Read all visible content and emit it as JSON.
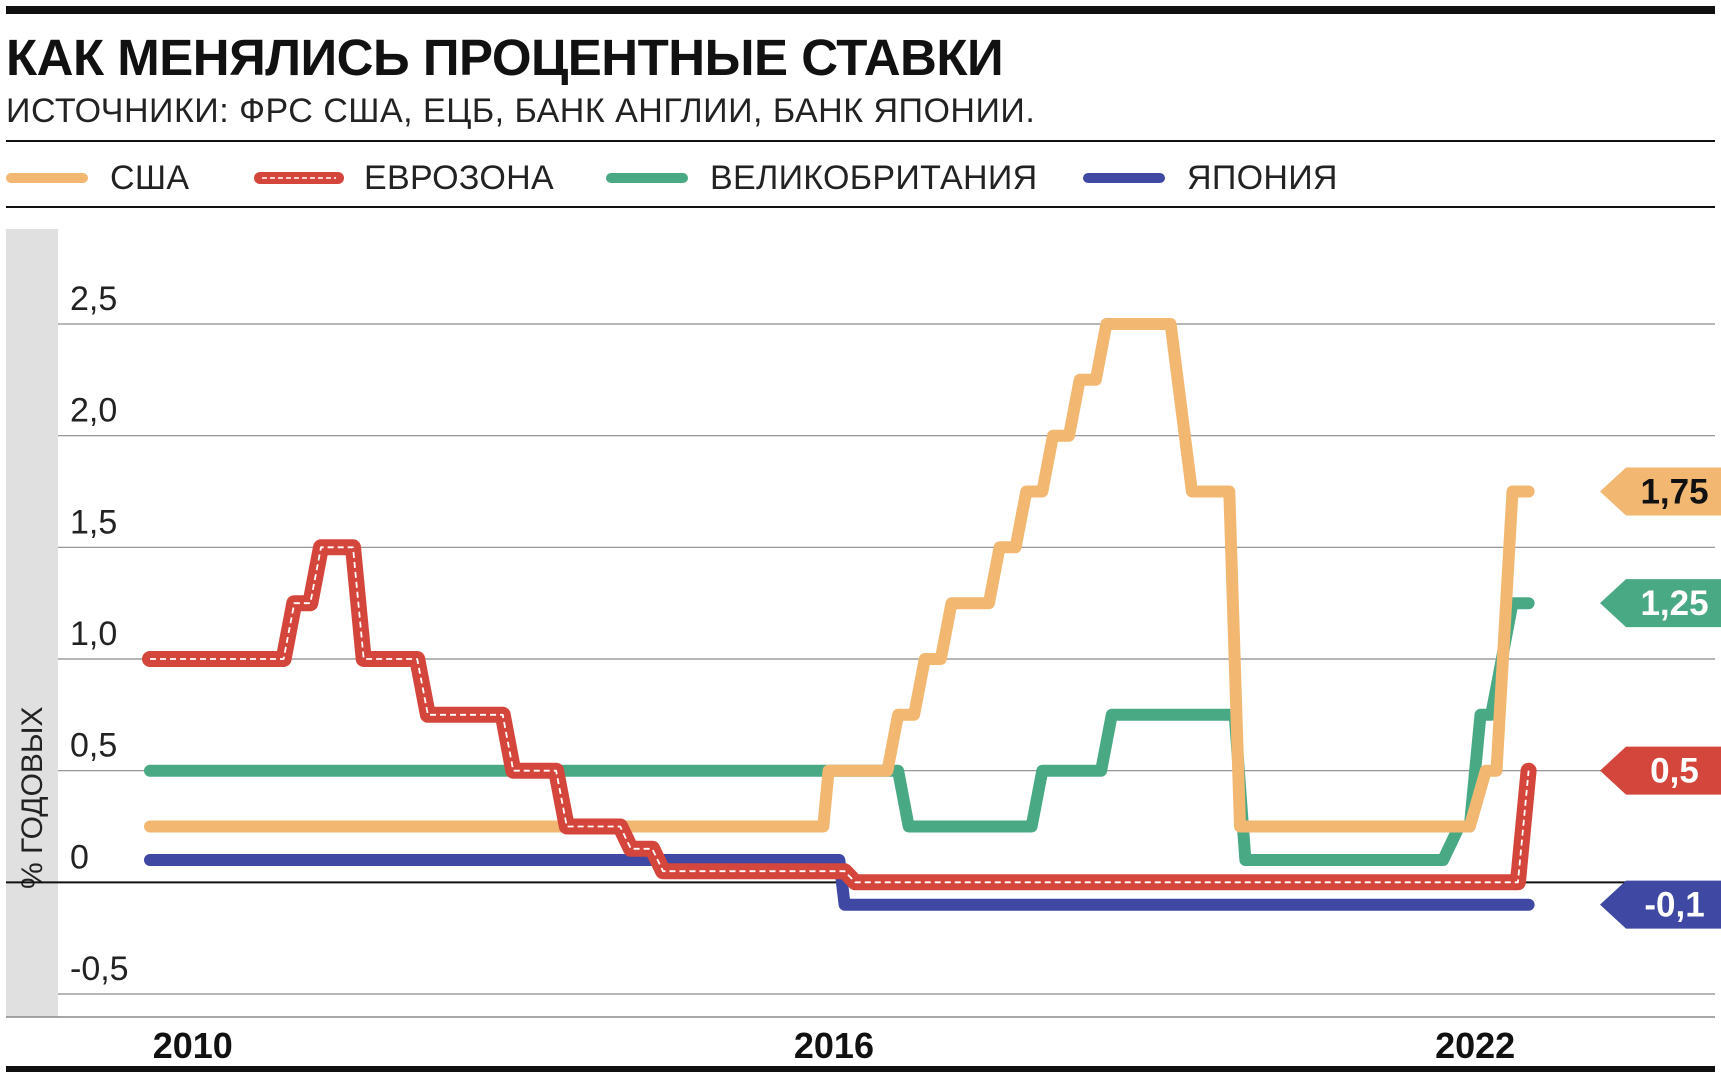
{
  "header": {
    "title": "КАК МЕНЯЛИСЬ ПРОЦЕНТНЫЕ СТАВКИ",
    "subtitle": "ИСТОЧНИКИ: ФРС США, ЕЦБ, БАНК АНГЛИИ, БАНК ЯПОНИИ."
  },
  "colors": {
    "usa": "#F2B872",
    "eurozone": "#D4463B",
    "uk": "#4AA985",
    "japan": "#3F48A2",
    "axis_band": "#E0E0E0"
  },
  "chart_data": {
    "type": "line",
    "line_style": "step",
    "ylabel": "% ГОДОВЫХ",
    "xlabel": "",
    "ylim": [
      -0.5,
      2.5
    ],
    "yticks": [
      -0.5,
      0,
      0.5,
      1.0,
      1.5,
      2.0,
      2.5
    ],
    "ytick_labels": [
      "-0,5",
      "0",
      "0,5",
      "1,0",
      "1,5",
      "2,0",
      "2,5"
    ],
    "xlim": [
      2009.6,
      2023.0
    ],
    "xticks": [
      2010,
      2016,
      2022
    ],
    "xtick_labels": [
      "2010",
      "2016",
      "2022"
    ],
    "grid": true,
    "legend_position": "top",
    "series": [
      {
        "name": "США",
        "color_key": "usa",
        "end_label": "1,75",
        "points": [
          [
            2009.6,
            0.25
          ],
          [
            2015.9,
            0.25
          ],
          [
            2015.95,
            0.5
          ],
          [
            2016.5,
            0.5
          ],
          [
            2016.6,
            0.75
          ],
          [
            2016.75,
            0.75
          ],
          [
            2016.85,
            1.0
          ],
          [
            2017.0,
            1.0
          ],
          [
            2017.1,
            1.25
          ],
          [
            2017.45,
            1.25
          ],
          [
            2017.55,
            1.5
          ],
          [
            2017.7,
            1.5
          ],
          [
            2017.8,
            1.75
          ],
          [
            2017.95,
            1.75
          ],
          [
            2018.05,
            2.0
          ],
          [
            2018.2,
            2.0
          ],
          [
            2018.3,
            2.25
          ],
          [
            2018.45,
            2.25
          ],
          [
            2018.55,
            2.5
          ],
          [
            2019.15,
            2.5
          ],
          [
            2019.35,
            1.75
          ],
          [
            2019.7,
            1.75
          ],
          [
            2019.8,
            0.25
          ],
          [
            2021.95,
            0.25
          ],
          [
            2022.1,
            0.5
          ],
          [
            2022.2,
            0.5
          ],
          [
            2022.35,
            1.75
          ],
          [
            2022.5,
            1.75
          ]
        ]
      },
      {
        "name": "ЕВРОЗОНА",
        "color_key": "eurozone",
        "end_label": "0,5",
        "points": [
          [
            2009.6,
            1.0
          ],
          [
            2010.85,
            1.0
          ],
          [
            2010.95,
            1.25
          ],
          [
            2011.1,
            1.25
          ],
          [
            2011.2,
            1.5
          ],
          [
            2011.5,
            1.5
          ],
          [
            2011.6,
            1.0
          ],
          [
            2012.1,
            1.0
          ],
          [
            2012.2,
            0.75
          ],
          [
            2012.9,
            0.75
          ],
          [
            2013.0,
            0.5
          ],
          [
            2013.4,
            0.5
          ],
          [
            2013.5,
            0.25
          ],
          [
            2014.0,
            0.25
          ],
          [
            2014.1,
            0.15
          ],
          [
            2014.3,
            0.15
          ],
          [
            2014.4,
            0.05
          ],
          [
            2016.1,
            0.05
          ],
          [
            2016.2,
            0.0
          ],
          [
            2022.4,
            0.0
          ],
          [
            2022.5,
            0.5
          ]
        ]
      },
      {
        "name": "ВЕЛИКОБРИТАНИЯ",
        "color_key": "uk",
        "end_label": "1,25",
        "points": [
          [
            2009.6,
            0.5
          ],
          [
            2016.6,
            0.5
          ],
          [
            2016.7,
            0.25
          ],
          [
            2017.85,
            0.25
          ],
          [
            2017.95,
            0.5
          ],
          [
            2018.5,
            0.5
          ],
          [
            2018.6,
            0.75
          ],
          [
            2019.75,
            0.75
          ],
          [
            2019.85,
            0.1
          ],
          [
            2021.7,
            0.1
          ],
          [
            2021.85,
            0.25
          ],
          [
            2021.95,
            0.25
          ],
          [
            2022.05,
            0.75
          ],
          [
            2022.15,
            0.75
          ],
          [
            2022.35,
            1.25
          ],
          [
            2022.5,
            1.25
          ]
        ]
      },
      {
        "name": "ЯПОНИЯ",
        "color_key": "japan",
        "end_label": "-0,1",
        "points": [
          [
            2009.6,
            0.1
          ],
          [
            2016.05,
            0.1
          ],
          [
            2016.1,
            -0.1
          ],
          [
            2022.5,
            -0.1
          ]
        ]
      }
    ]
  }
}
